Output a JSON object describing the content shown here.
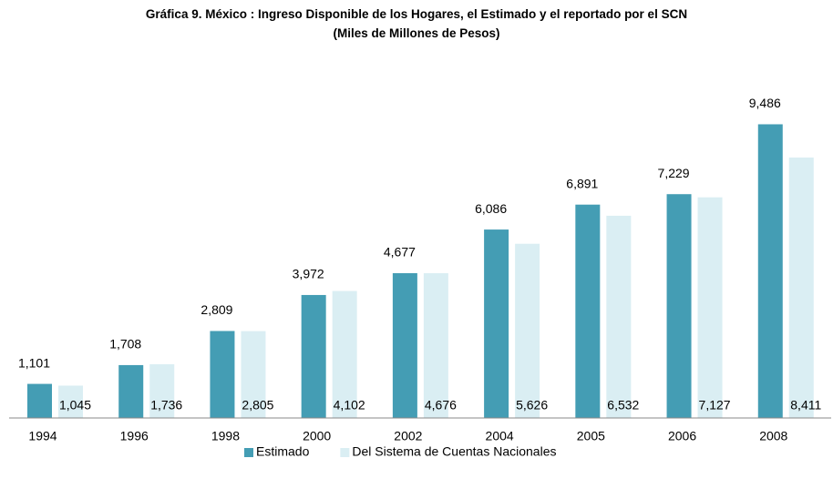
{
  "chart_data": {
    "type": "bar",
    "title": "Gráfica 9. México : Ingreso Disponible de los Hogares, el Estimado y el reportado por el SCN",
    "subtitle": "(Miles de Millones de Pesos)",
    "categories": [
      "1994",
      "1996",
      "1998",
      "2000",
      "2002",
      "2004",
      "2005",
      "2006",
      "2008"
    ],
    "series": [
      {
        "name": "Estimado",
        "color": "#449db4",
        "values": [
          1101,
          1708,
          2809,
          3972,
          4677,
          6086,
          6891,
          7229,
          9486
        ],
        "value_labels": [
          "1,101",
          "1,708",
          "2,809",
          "3,972",
          "4,677",
          "6,086",
          "6,891",
          "7,229",
          "9,486"
        ]
      },
      {
        "name": "Del Sistema de Cuentas Nacionales",
        "color": "#daeef3",
        "values": [
          1045,
          1736,
          2805,
          4102,
          4676,
          5626,
          6532,
          7127,
          8411
        ],
        "value_labels": [
          "1,045",
          "1,736",
          "2,805",
          "4,102",
          "4,676",
          "5,626",
          "6,532",
          "7,127",
          "8,411"
        ]
      }
    ],
    "ylim": [
      0,
      10000
    ]
  }
}
